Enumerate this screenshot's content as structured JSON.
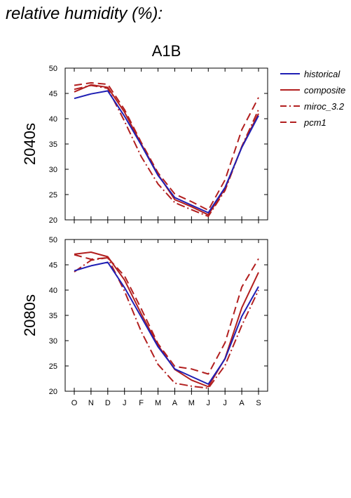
{
  "header": {
    "title": "relative humidity (%):"
  },
  "chart_data": {
    "type": "line",
    "scenario": "A1B",
    "categories": [
      "O",
      "N",
      "D",
      "J",
      "F",
      "M",
      "A",
      "M",
      "J",
      "J",
      "A",
      "S"
    ],
    "ylim": [
      20,
      50
    ],
    "yticks": [
      20,
      25,
      30,
      35,
      40,
      45,
      50
    ],
    "legend": {
      "placement": "right",
      "entries": [
        {
          "name": "historical",
          "color": "#1f1fb4",
          "dash": "solid"
        },
        {
          "name": "composite",
          "color": "#b21f1f",
          "dash": "solid"
        },
        {
          "name": "miroc_3.2",
          "color": "#b21f1f",
          "dash": "dashdot"
        },
        {
          "name": "pcm1",
          "color": "#b21f1f",
          "dash": "dashed"
        }
      ]
    },
    "panels": [
      {
        "label": "2040s",
        "series": [
          {
            "name": "historical",
            "values": [
              44.0,
              44.9,
              45.5,
              40.5,
              34.8,
              28.8,
              24.4,
              22.9,
              21.4,
              26.4,
              34.3,
              40.6
            ]
          },
          {
            "name": "composite",
            "values": [
              45.3,
              46.7,
              46.2,
              41.3,
              35.0,
              29.0,
              24.0,
              22.6,
              21.0,
              26.2,
              34.4,
              41.0
            ]
          },
          {
            "name": "miroc_3.2",
            "values": [
              45.8,
              46.6,
              46.0,
              39.5,
              32.5,
              27.1,
              23.4,
              22.0,
              20.7,
              25.8,
              34.5,
              41.8
            ]
          },
          {
            "name": "pcm1",
            "values": [
              46.6,
              47.1,
              46.8,
              41.8,
              35.3,
              29.3,
              25.1,
              23.6,
              21.9,
              27.9,
              37.8,
              44.2
            ]
          }
        ]
      },
      {
        "label": "2080s",
        "series": [
          {
            "name": "historical",
            "values": [
              43.8,
              44.8,
              45.5,
              40.5,
              34.7,
              28.8,
              24.4,
              22.9,
              21.4,
              26.4,
              34.8,
              40.7
            ]
          },
          {
            "name": "composite",
            "values": [
              47.1,
              47.5,
              46.6,
              42.0,
              35.3,
              29.1,
              24.3,
              22.2,
              20.9,
              26.5,
              36.5,
              43.5
            ]
          },
          {
            "name": "miroc_3.2",
            "values": [
              43.6,
              45.9,
              46.4,
              39.8,
              31.8,
              25.3,
              21.6,
              21.0,
              20.6,
              25.1,
              33.0,
              40.0
            ]
          },
          {
            "name": "pcm1",
            "values": [
              47.0,
              46.1,
              46.4,
              42.8,
              36.3,
              29.4,
              24.9,
              24.4,
              23.4,
              29.6,
              40.6,
              46.2
            ]
          }
        ]
      }
    ]
  }
}
